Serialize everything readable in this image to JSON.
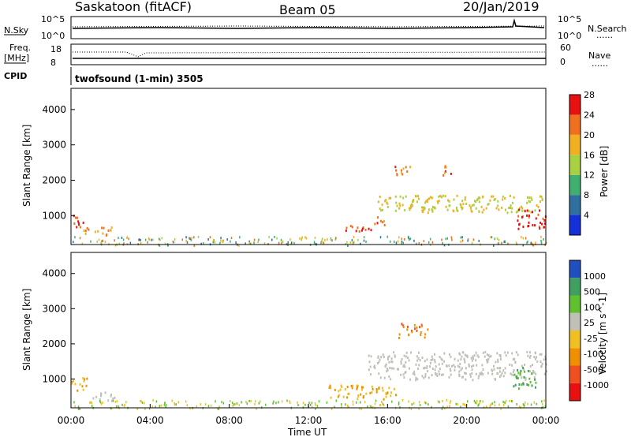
{
  "header": {
    "station": "Saskatoon (fitACF)",
    "beam": "Beam 05",
    "date": "20/Jan/2019"
  },
  "strip": {
    "nsky_label": "N.Sky",
    "nsearch_label": "N.Search",
    "noise_ticks_left": [
      "10^5",
      "10^0"
    ],
    "noise_ticks_right": [
      "10^5",
      "10^0"
    ],
    "freq_label": "Freq.",
    "freq_unit": "[MHz]",
    "freq_ticks": [
      "18",
      "8"
    ],
    "nave_label": "Nave",
    "nave_ticks": [
      "60",
      "0"
    ],
    "cpid_label": "CPID",
    "cpid_text": "twofsound (1-min) 3505",
    "legend_dotted": "......"
  },
  "chart_data": [
    {
      "type": "heatmap",
      "name": "power",
      "ylabel": "Slant Range [km]",
      "yticks": [
        "1000",
        "2000",
        "3000",
        "4000"
      ],
      "ylim": [
        180,
        4600
      ],
      "xlim_hours": [
        0,
        24
      ],
      "colorbar_label": "Power [dB]",
      "colorbar_ticks": [
        "4",
        "8",
        "12",
        "16",
        "20",
        "24",
        "28"
      ],
      "colorbar_range": [
        0,
        32
      ],
      "colors": [
        "#1530d8",
        "#2f70a0",
        "#40b070",
        "#a8d040",
        "#f0b020",
        "#f07020",
        "#e81010"
      ],
      "features": [
        {
          "t": [
            0.0,
            0.6
          ],
          "r": [
            700,
            1100
          ],
          "level": 26
        },
        {
          "t": [
            0.6,
            2.2
          ],
          "r": [
            450,
            700
          ],
          "level": 20
        },
        {
          "t": [
            13.5,
            15.3
          ],
          "r": [
            580,
            760
          ],
          "level": 24
        },
        {
          "t": [
            15.3,
            16.0
          ],
          "r": [
            740,
            1000
          ],
          "level": 22
        },
        {
          "t": [
            15.5,
            23.8
          ],
          "r": [
            1100,
            1600
          ],
          "level": 16
        },
        {
          "t": [
            16.3,
            17.2
          ],
          "r": [
            2150,
            2450
          ],
          "level": 22
        },
        {
          "t": [
            18.7,
            19.3
          ],
          "r": [
            2150,
            2450
          ],
          "level": 22
        },
        {
          "t": [
            22.5,
            24.0
          ],
          "r": [
            650,
            1200
          ],
          "level": 27
        }
      ]
    },
    {
      "type": "heatmap",
      "name": "velocity",
      "ylabel": "Slant Range [km]",
      "yticks": [
        "1000",
        "2000",
        "3000",
        "4000"
      ],
      "ylim": [
        180,
        4600
      ],
      "xlim_hours": [
        0,
        24
      ],
      "xlabel": "Time UT",
      "xticks": [
        "00:00",
        "04:00",
        "08:00",
        "12:00",
        "16:00",
        "20:00",
        "00:00"
      ],
      "colorbar_label": "Velocity [m s^-1]",
      "colorbar_ticks": [
        "1000",
        "500",
        "100",
        "25",
        "-25",
        "-100",
        "-500",
        "-1000"
      ],
      "colors": [
        "#e81010",
        "#f05020",
        "#f09000",
        "#f0c020",
        "#c0c0b8",
        "#60c030",
        "#40a060",
        "#2050c0"
      ],
      "features": [
        {
          "t": [
            0.0,
            0.8
          ],
          "r": [
            700,
            1100
          ],
          "level": -100
        },
        {
          "t": [
            0.8,
            2.2
          ],
          "r": [
            400,
            650
          ],
          "level": 0
        },
        {
          "t": [
            13.0,
            16.5
          ],
          "r": [
            450,
            850
          ],
          "level": -100
        },
        {
          "t": [
            15.0,
            24.0
          ],
          "r": [
            1000,
            1800
          ],
          "level": 0
        },
        {
          "t": [
            16.5,
            18.0
          ],
          "r": [
            2200,
            2600
          ],
          "level": -500
        },
        {
          "t": [
            22.3,
            23.5
          ],
          "r": [
            750,
            1350
          ],
          "level": 100
        }
      ]
    }
  ]
}
